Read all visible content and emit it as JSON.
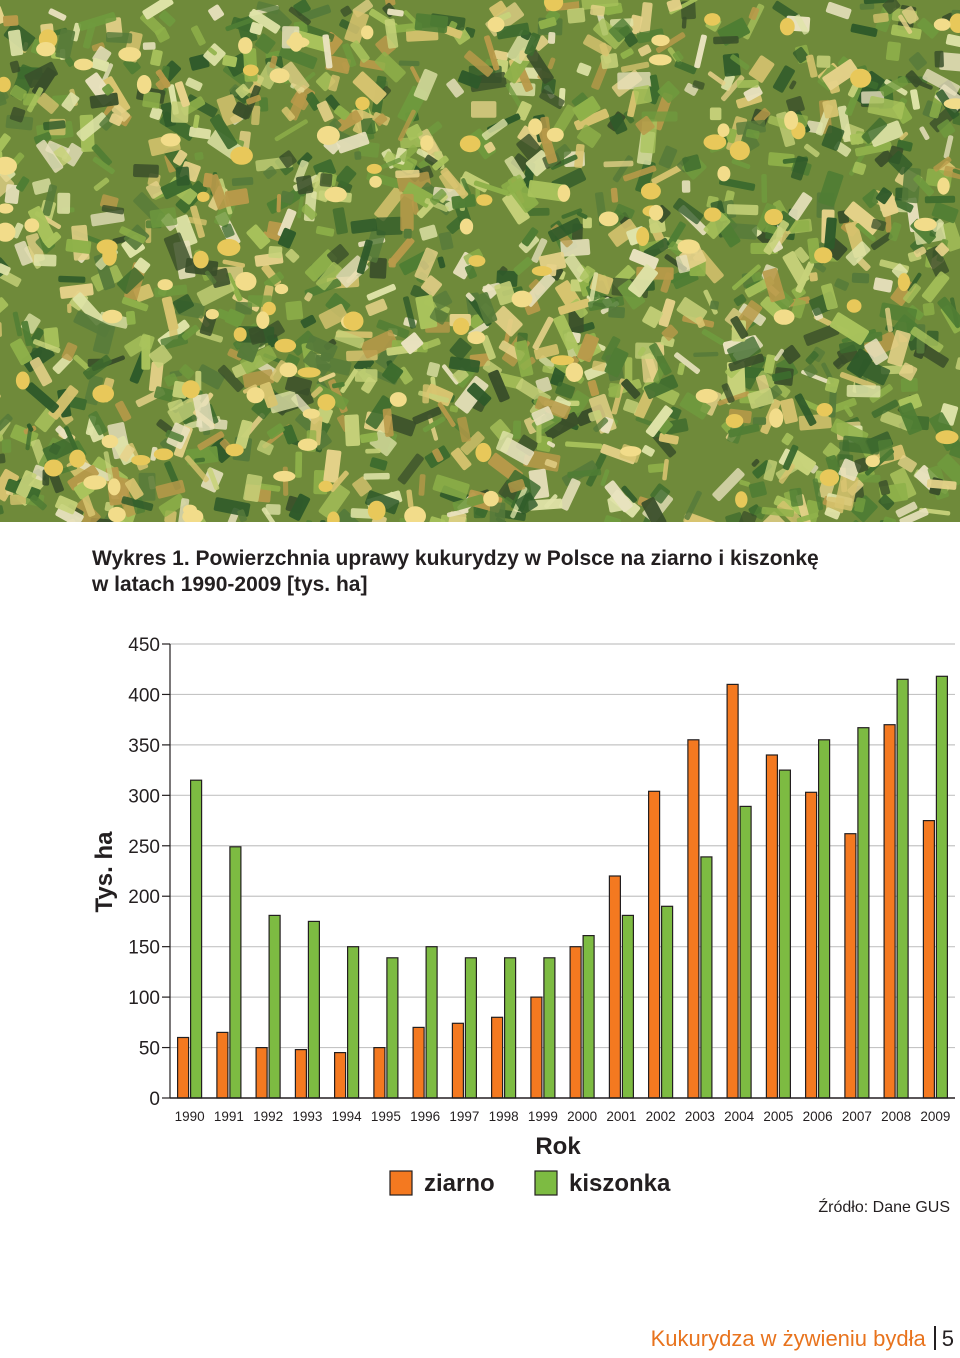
{
  "caption": {
    "line1": "Wykres 1. Powierzchnia uprawy kukurydzy w Polsce na ziarno i kiszonkę",
    "line2": "w latach 1990-2009 [tys. ha]"
  },
  "source": "Źródło: Dane GUS",
  "footer": {
    "title": "Kukurydza w żywieniu bydła",
    "page_number": "5"
  },
  "colors": {
    "ziarno": "#f47920",
    "kiszonka": "#7dbb42"
  },
  "chart_data": {
    "type": "bar",
    "title": "Wykres 1. Powierzchnia uprawy kukurydzy w Polsce na ziarno i kiszonkę w latach 1990-2009 [tys. ha]",
    "xlabel": "Rok",
    "ylabel": "Tys. ha",
    "ylim": [
      0,
      450
    ],
    "yticks": [
      0,
      50,
      100,
      150,
      200,
      250,
      300,
      350,
      400,
      450
    ],
    "grid": true,
    "legend_position": "bottom-center",
    "categories": [
      "1990",
      "1991",
      "1992",
      "1993",
      "1994",
      "1995",
      "1996",
      "1997",
      "1998",
      "1999",
      "2000",
      "2001",
      "2002",
      "2003",
      "2004",
      "2005",
      "2006",
      "2007",
      "2008",
      "2009"
    ],
    "series": [
      {
        "name": "ziarno",
        "values": [
          60,
          65,
          50,
          48,
          45,
          50,
          70,
          74,
          80,
          100,
          150,
          220,
          304,
          355,
          410,
          340,
          303,
          262,
          370,
          275
        ]
      },
      {
        "name": "kiszonka",
        "values": [
          315,
          249,
          181,
          175,
          150,
          139,
          150,
          139,
          139,
          139,
          161,
          181,
          190,
          239,
          289,
          325,
          355,
          367,
          415,
          418
        ]
      }
    ]
  }
}
